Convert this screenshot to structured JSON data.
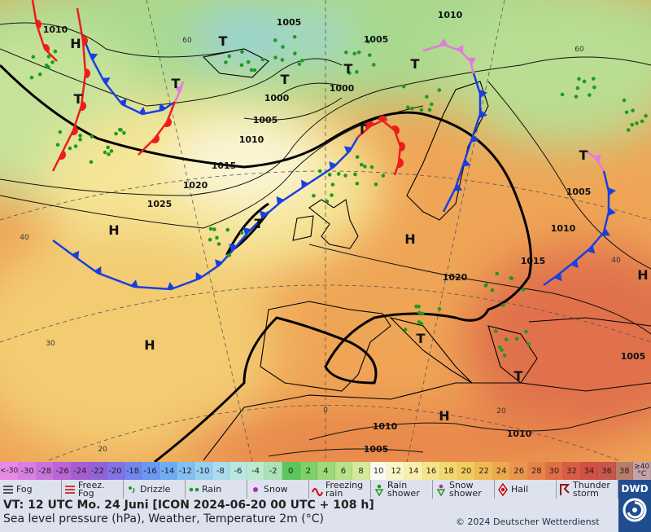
{
  "map": {
    "pressure_labels": [
      "1010",
      "1005",
      "1010",
      "1005",
      "1000",
      "1000",
      "1005",
      "1010",
      "1015",
      "1020",
      "1025",
      "1005",
      "1010",
      "1015",
      "1020",
      "1010",
      "1005",
      "1010",
      "1005"
    ],
    "centers": [
      "H",
      "T",
      "T",
      "T",
      "T",
      "T",
      "T",
      "T",
      "T",
      "H",
      "H",
      "H",
      "T",
      "T",
      "H",
      "H",
      "T"
    ],
    "temperature_labels": [
      "60",
      "60",
      "40",
      "30",
      "20",
      "0",
      "20",
      "40"
    ]
  },
  "legend": {
    "scale": [
      {
        "label": "<-30",
        "color": "#e68ae6"
      },
      {
        "label": "-30",
        "color": "#d87fe2"
      },
      {
        "label": "-28",
        "color": "#c972dc"
      },
      {
        "label": "-26",
        "color": "#b965d6"
      },
      {
        "label": "-24",
        "color": "#a75dd2"
      },
      {
        "label": "-22",
        "color": "#9462d8"
      },
      {
        "label": "-20",
        "color": "#8372e6"
      },
      {
        "label": "-18",
        "color": "#7286ee"
      },
      {
        "label": "-16",
        "color": "#6a99f2"
      },
      {
        "label": "-14",
        "color": "#70acf3"
      },
      {
        "label": "-12",
        "color": "#82bff2"
      },
      {
        "label": "-10",
        "color": "#96cff0"
      },
      {
        "label": "-8",
        "color": "#a9dced"
      },
      {
        "label": "-6",
        "color": "#b8e6e2"
      },
      {
        "label": "-4",
        "color": "#bde9cf"
      },
      {
        "label": "-2",
        "color": "#a9e2b6"
      },
      {
        "label": "0",
        "color": "#5cc65c"
      },
      {
        "label": "2",
        "color": "#7dcf6a"
      },
      {
        "label": "4",
        "color": "#9bd97a"
      },
      {
        "label": "6",
        "color": "#b7e28a"
      },
      {
        "label": "8",
        "color": "#d2ea9a"
      },
      {
        "label": "10",
        "color": "#fbfbef"
      },
      {
        "label": "12",
        "color": "#fbf6c8"
      },
      {
        "label": "14",
        "color": "#f9eeaa"
      },
      {
        "label": "16",
        "color": "#f6e48a"
      },
      {
        "label": "18",
        "color": "#f3d86f"
      },
      {
        "label": "20",
        "color": "#f2cc5e"
      },
      {
        "label": "22",
        "color": "#f0bb55"
      },
      {
        "label": "24",
        "color": "#eea94f"
      },
      {
        "label": "26",
        "color": "#eb964b"
      },
      {
        "label": "28",
        "color": "#e88349"
      },
      {
        "label": "30",
        "color": "#e36e46"
      },
      {
        "label": "32",
        "color": "#db5c45"
      },
      {
        "label": "34",
        "color": "#d24f45"
      },
      {
        "label": "36",
        "color": "#c6574a"
      },
      {
        "label": "38",
        "color": "#b97d6a"
      },
      {
        "label": "≥40",
        "color": "#c4a3a8"
      }
    ],
    "unit": "°C",
    "weather": [
      "Fog",
      "Freez. Fog",
      "Drizzle",
      "Rain",
      "Snow",
      "Freezing rain",
      "Rain shower",
      "Snow shower",
      "Hail",
      "Thunder storm"
    ]
  },
  "footer": {
    "valid_time": "VT: 12 UTC Mo.  24 Juni [ICON 2024-06-20  00 UTC + 108 h]",
    "description": "Sea level pressure (hPa), Weather, Temperature 2m (°C)",
    "copyright": "© 2024 Deutscher Wetterdienst",
    "logo": "DWD"
  }
}
